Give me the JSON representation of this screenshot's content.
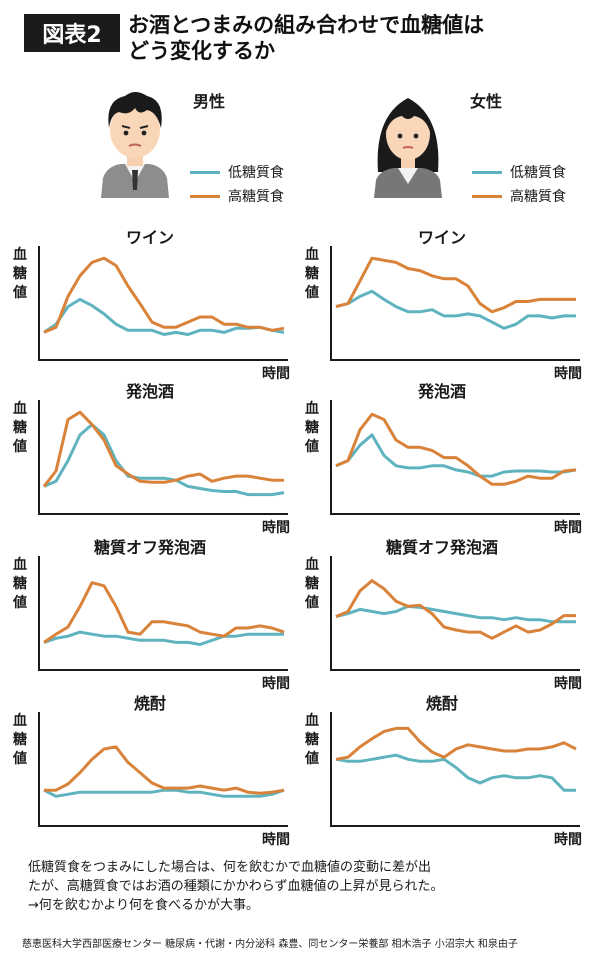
{
  "header": {
    "badge": "図表2",
    "title_line1": "お酒とつまみの組み合わせで血糖値は",
    "title_line2": "どう変化するか"
  },
  "colors": {
    "low_carb": "#5fb3bf",
    "high_carb": "#d9823a",
    "axis": "#1a1a1a"
  },
  "legend": {
    "low_carb": "低糖質食",
    "high_carb": "高糖質食"
  },
  "columns": [
    {
      "label": "男性",
      "icon": "man-avatar-icon"
    },
    {
      "label": "女性",
      "icon": "woman-avatar-icon"
    }
  ],
  "axis": {
    "ylabel_chars": [
      "血",
      "糖",
      "値"
    ],
    "xlabel": "時間"
  },
  "chart_data": [
    {
      "type": "line",
      "title": "ワイン",
      "gender": "男性",
      "ylim": [
        0,
        100
      ],
      "series": [
        {
          "name": "低糖質食",
          "values": [
            20,
            28,
            45,
            52,
            46,
            38,
            28,
            22,
            22,
            22,
            18,
            20,
            18,
            22,
            22,
            20,
            24,
            24,
            25,
            22,
            20
          ]
        },
        {
          "name": "高糖質食",
          "values": [
            20,
            25,
            55,
            75,
            88,
            92,
            85,
            65,
            48,
            30,
            25,
            25,
            30,
            35,
            35,
            28,
            28,
            25,
            25,
            22,
            24
          ]
        }
      ]
    },
    {
      "type": "line",
      "title": "ワイン",
      "gender": "女性",
      "ylim": [
        0,
        100
      ],
      "series": [
        {
          "name": "低糖質食",
          "values": [
            45,
            48,
            55,
            60,
            52,
            45,
            40,
            40,
            42,
            36,
            36,
            38,
            36,
            30,
            24,
            28,
            36,
            36,
            34,
            36,
            36
          ]
        },
        {
          "name": "高糖質食",
          "values": [
            45,
            48,
            70,
            92,
            90,
            88,
            82,
            80,
            75,
            72,
            72,
            65,
            48,
            40,
            44,
            50,
            50,
            52,
            52,
            52,
            52
          ]
        }
      ]
    },
    {
      "type": "line",
      "title": "発泡酒",
      "gender": "男性",
      "ylim": [
        0,
        100
      ],
      "series": [
        {
          "name": "低糖質食",
          "values": [
            20,
            25,
            45,
            70,
            80,
            70,
            45,
            30,
            28,
            28,
            28,
            26,
            20,
            18,
            16,
            15,
            15,
            12,
            12,
            12,
            14
          ]
        },
        {
          "name": "高糖質食",
          "values": [
            20,
            35,
            85,
            92,
            80,
            65,
            40,
            32,
            25,
            24,
            24,
            26,
            30,
            32,
            25,
            28,
            30,
            30,
            28,
            26,
            26
          ]
        }
      ]
    },
    {
      "type": "line",
      "title": "発泡酒",
      "gender": "女性",
      "ylim": [
        0,
        100
      ],
      "series": [
        {
          "name": "低糖質食",
          "values": [
            40,
            45,
            60,
            70,
            50,
            40,
            38,
            38,
            40,
            40,
            36,
            34,
            30,
            30,
            34,
            35,
            35,
            35,
            34,
            34,
            36
          ]
        },
        {
          "name": "高糖質食",
          "values": [
            40,
            45,
            75,
            90,
            85,
            65,
            58,
            58,
            55,
            48,
            48,
            40,
            30,
            22,
            22,
            25,
            30,
            28,
            28,
            35,
            36
          ]
        }
      ]
    },
    {
      "type": "line",
      "title": "糖質オフ発泡酒",
      "gender": "男性",
      "ylim": [
        0,
        100
      ],
      "series": [
        {
          "name": "低糖質食",
          "values": [
            20,
            24,
            26,
            30,
            28,
            26,
            26,
            24,
            22,
            22,
            22,
            20,
            20,
            18,
            22,
            26,
            26,
            28,
            28,
            28,
            28
          ]
        },
        {
          "name": "高糖質食",
          "values": [
            20,
            28,
            35,
            55,
            78,
            75,
            55,
            30,
            28,
            40,
            40,
            38,
            36,
            30,
            28,
            26,
            34,
            34,
            36,
            34,
            30
          ]
        }
      ]
    },
    {
      "type": "line",
      "title": "糖質オフ発泡酒",
      "gender": "女性",
      "ylim": [
        0,
        100
      ],
      "series": [
        {
          "name": "低糖質食",
          "values": [
            45,
            48,
            52,
            50,
            48,
            50,
            55,
            54,
            52,
            50,
            48,
            46,
            44,
            44,
            42,
            44,
            42,
            42,
            40,
            40,
            40
          ]
        },
        {
          "name": "高糖質食",
          "values": [
            45,
            50,
            70,
            80,
            72,
            60,
            55,
            56,
            48,
            35,
            32,
            30,
            30,
            24,
            30,
            36,
            30,
            32,
            38,
            46,
            46
          ]
        }
      ]
    },
    {
      "type": "line",
      "title": "焼酎",
      "gender": "男性",
      "ylim": [
        0,
        100
      ],
      "series": [
        {
          "name": "低糖質食",
          "values": [
            28,
            22,
            24,
            26,
            26,
            26,
            26,
            26,
            26,
            26,
            28,
            28,
            26,
            26,
            24,
            22,
            22,
            22,
            22,
            24,
            28
          ]
        },
        {
          "name": "高糖質食",
          "values": [
            28,
            28,
            34,
            45,
            58,
            68,
            70,
            55,
            45,
            35,
            30,
            30,
            30,
            32,
            30,
            28,
            30,
            26,
            25,
            26,
            28
          ]
        }
      ]
    },
    {
      "type": "line",
      "title": "焼酎",
      "gender": "女性",
      "ylim": [
        0,
        100
      ],
      "series": [
        {
          "name": "低糖質食",
          "values": [
            58,
            56,
            56,
            58,
            60,
            62,
            58,
            56,
            56,
            58,
            50,
            40,
            35,
            40,
            42,
            40,
            40,
            42,
            40,
            28,
            28
          ]
        },
        {
          "name": "高糖質食",
          "values": [
            58,
            60,
            70,
            78,
            85,
            88,
            88,
            75,
            65,
            60,
            68,
            72,
            70,
            68,
            66,
            66,
            68,
            68,
            70,
            74,
            68
          ]
        }
      ]
    }
  ],
  "note": {
    "line1": "低糖質食をつまみにした場合は、何を飲むかで血糖値の変動に差が出",
    "line2": "たが、高糖質食ではお酒の種類にかかわらず血糖値の上昇が見られた。",
    "line3": "→何を飲むかより何を食べるかが大事。"
  },
  "credit": "慈恵医科大学西部医療センター 糖尿病・代謝・内分泌科 森豊、同センター栄養部 相木浩子 小沼宗大 和泉由子"
}
